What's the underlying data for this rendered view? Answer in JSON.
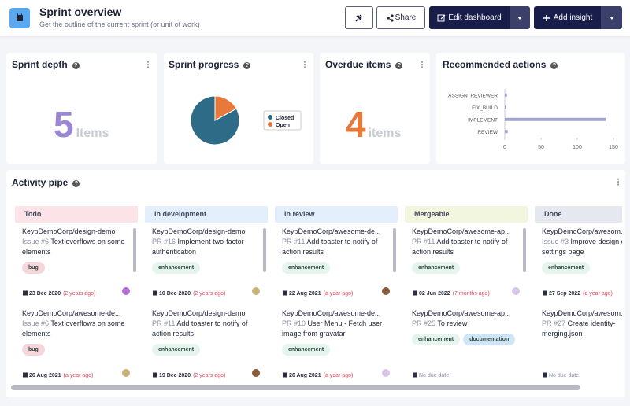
{
  "header": {
    "title": "Sprint overview",
    "subtitle": "Get the outline of the current sprint (or unit of work)",
    "buttons": {
      "share": "Share",
      "edit": "Edit dashboard",
      "add": "Add insight"
    }
  },
  "widgets": {
    "sprint_depth": {
      "title": "Sprint depth",
      "value": 5,
      "unit": "Items",
      "color": "#9b86d6"
    },
    "sprint_progress": {
      "title": "Sprint progress",
      "chart": {
        "type": "pie",
        "categories": [
          "Closed",
          "Open"
        ],
        "values": [
          83,
          17
        ],
        "colors": [
          "#2e6b87",
          "#e8793a"
        ]
      }
    },
    "overdue_items": {
      "title": "Overdue items",
      "value": 4,
      "unit": "items",
      "color": "#e8793a"
    },
    "recommended_actions": {
      "title": "Recommended actions",
      "chart": {
        "type": "bar",
        "categories": [
          "ASSIGN_REVIEWER",
          "FIX_BUILD",
          "IMPLEMENT",
          "REVIEW"
        ],
        "values": [
          3,
          2,
          140,
          4
        ],
        "color": "#a3a4cc",
        "xlim": [
          0,
          150
        ],
        "xticks": [
          0,
          50,
          100,
          150
        ]
      }
    }
  },
  "activity": {
    "title": "Activity pipe",
    "columns": [
      {
        "name": "Todo",
        "color": "#fbe3e8",
        "items": [
          {
            "repo": "KeypDemoCorp/design-demo",
            "ref": "Issue #6",
            "title": "Text overflows on some elements",
            "labels": [
              {
                "text": "bug",
                "color": "#f7d6dc"
              }
            ],
            "date": "23 Dec 2020",
            "relative": "(2 years ago)"
          },
          {
            "repo": "KeypDemoCorp/awesome-de...",
            "ref": "Issue #6",
            "title": "Text overflows on some elements",
            "labels": [
              {
                "text": "bug",
                "color": "#f7d6dc"
              }
            ],
            "date": "26 Aug 2021",
            "relative": "(a year ago)"
          }
        ]
      },
      {
        "name": "In development",
        "color": "#e3effc",
        "items": [
          {
            "repo": "KeypDemoCorp/design-demo",
            "ref": "PR #16",
            "title": "Implement two-factor authentication",
            "labels": [
              {
                "text": "enhancement",
                "color": "#e5f4ec"
              }
            ],
            "date": "10 Dec 2020",
            "relative": "(2 years ago)"
          },
          {
            "repo": "KeypDemoCorp/design-demo",
            "ref": "PR #11",
            "title": "Add toaster to notify of action results",
            "labels": [
              {
                "text": "enhancement",
                "color": "#e5f4ec"
              }
            ],
            "date": "19 Dec 2020",
            "relative": "(2 years ago)"
          }
        ]
      },
      {
        "name": "In review",
        "color": "#e3effc",
        "items": [
          {
            "repo": "KeypDemoCorp/awesome-de...",
            "ref": "PR #11",
            "title": "Add toaster to notify of action results",
            "labels": [
              {
                "text": "enhancement",
                "color": "#e5f4ec"
              }
            ],
            "date": "22 Aug 2021",
            "relative": "(a year ago)"
          },
          {
            "repo": "KeypDemoCorp/awesome-de...",
            "ref": "PR #10",
            "title": "User Menu - Fetch user image from gravatar",
            "labels": [
              {
                "text": "enhancement",
                "color": "#e5f4ec"
              }
            ],
            "date": "26 Aug 2021",
            "relative": "(a year ago)"
          }
        ]
      },
      {
        "name": "Mergeable",
        "color": "#f3f6de",
        "items": [
          {
            "repo": "KeypDemoCorp/awesome-ap...",
            "ref": "PR #11",
            "title": "Add toaster to notify of action results",
            "labels": [
              {
                "text": "enhancement",
                "color": "#e5f4ec"
              }
            ],
            "date": "02 Jun 2022",
            "relative": "(7 months ago)"
          },
          {
            "repo": "KeypDemoCorp/awesome-ap...",
            "ref": "PR #25",
            "title": "To review",
            "labels": [
              {
                "text": "enhancement",
                "color": "#e5f4ec"
              },
              {
                "text": "documentation",
                "color": "#cfe5f6"
              }
            ],
            "date": "No due date"
          }
        ]
      },
      {
        "name": "Done",
        "color": "#e6e8f0",
        "items": [
          {
            "repo": "KeypDemoCorp/awesom...",
            "ref": "Issue #3",
            "title": "Improve design of settings page",
            "labels": [
              {
                "text": "enhancement",
                "color": "#e5f4ec"
              }
            ],
            "date": "27 Sep 2022",
            "relative": "(a year ago)"
          },
          {
            "repo": "KeypDemoCorp/awesom...",
            "ref": "PR #27",
            "title": "Create identity-merging.json",
            "labels": [],
            "date": "No due date"
          }
        ]
      }
    ]
  }
}
